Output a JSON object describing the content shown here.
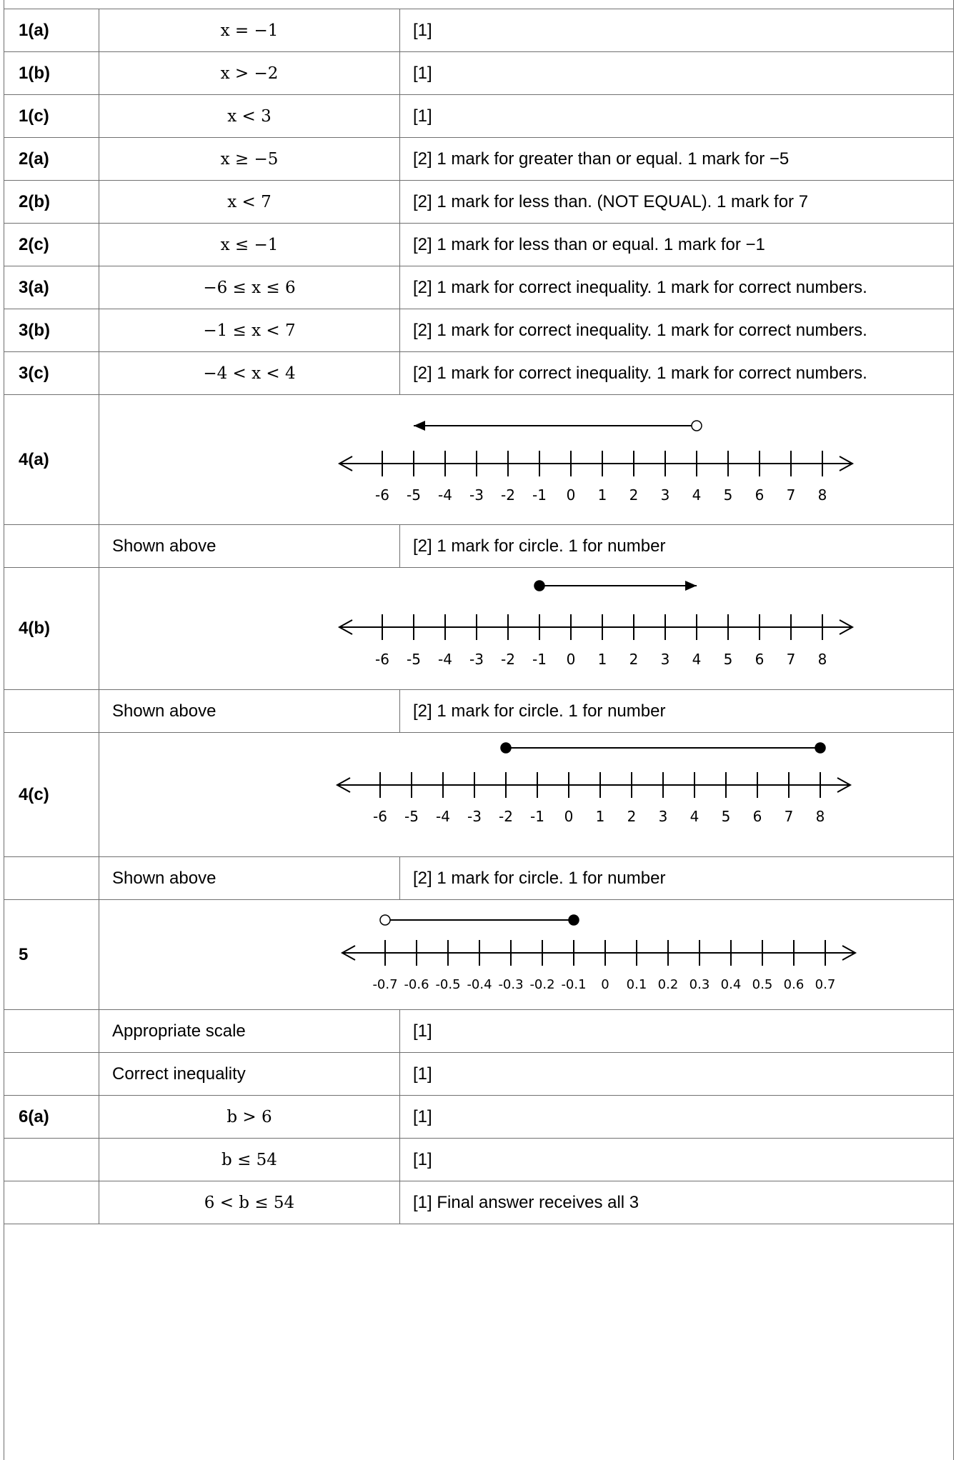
{
  "rows": [
    {
      "q": "1(a)",
      "answer": "x = −1",
      "mark": "[1]"
    },
    {
      "q": "1(b)",
      "answer": "x > −2",
      "mark": "[1]"
    },
    {
      "q": "1(c)",
      "answer": "x < 3",
      "mark": "[1]"
    },
    {
      "q": "2(a)",
      "answer": "x ≥ −5",
      "mark": "[2] 1 mark for greater than or equal. 1 mark for −5"
    },
    {
      "q": "2(b)",
      "answer": "x < 7",
      "mark": "[2] 1 mark for less than. (NOT EQUAL). 1 mark for 7"
    },
    {
      "q": "2(c)",
      "answer": "x ≤ −1",
      "mark": "[2] 1 mark for less than or equal. 1 mark for −1"
    },
    {
      "q": "3(a)",
      "answer": "−6 ≤ x ≤ 6",
      "mark": "[2] 1 mark for correct inequality. 1 mark for correct numbers."
    },
    {
      "q": "3(b)",
      "answer": "−1 ≤ x < 7",
      "mark": "[2] 1 mark for correct inequality. 1 mark for correct numbers."
    },
    {
      "q": "3(c)",
      "answer": "−4 < x < 4",
      "mark": "[2] 1 mark for correct inequality. 1 mark for correct numbers."
    }
  ],
  "number_lines": {
    "4a": {
      "q": "4(a)",
      "ticks": [
        "-6",
        "-5",
        "-4",
        "-3",
        "-2",
        "-1",
        "0",
        "1",
        "2",
        "3",
        "4",
        "5",
        "6",
        "7",
        "8"
      ],
      "ray": {
        "from": 4,
        "to": -5,
        "from_closed": false,
        "arrow_end": true
      },
      "follow_answer": "Shown above",
      "follow_mark": "[2] 1 mark for circle.  1 for number"
    },
    "4b": {
      "q": "4(b)",
      "ticks": [
        "-6",
        "-5",
        "-4",
        "-3",
        "-2",
        "-1",
        "0",
        "1",
        "2",
        "3",
        "4",
        "5",
        "6",
        "7",
        "8"
      ],
      "ray": {
        "from": -1,
        "to": 4,
        "from_closed": true,
        "arrow_end": true
      },
      "follow_answer": "Shown above",
      "follow_mark": "[2] 1 mark for circle.  1 for number"
    },
    "4c": {
      "q": "4(c)",
      "ticks": [
        "-6",
        "-5",
        "-4",
        "-3",
        "-2",
        "-1",
        "0",
        "1",
        "2",
        "3",
        "4",
        "5",
        "6",
        "7",
        "8"
      ],
      "ray": {
        "from": -2,
        "to": 8,
        "from_closed": true,
        "to_closed": true
      },
      "follow_answer": "Shown above",
      "follow_mark": "[2] 1 mark for circle.  1 for number"
    },
    "5": {
      "q": "5",
      "ticks": [
        "-0.7",
        "-0.6",
        "-0.5",
        "-0.4",
        "-0.3",
        "-0.2",
        "-0.1",
        "0",
        "0.1",
        "0.2",
        "0.3",
        "0.4",
        "0.5",
        "0.6",
        "0.7"
      ],
      "ray": {
        "from": -0.7,
        "to": -0.1,
        "from_closed": false,
        "to_closed": true
      },
      "follow": [
        {
          "answer": "Appropriate scale",
          "mark": "[1]"
        },
        {
          "answer": "Correct inequality",
          "mark": "[1]"
        }
      ]
    }
  },
  "rows6": [
    {
      "q": "6(a)",
      "answer": "b > 6",
      "mark": "[1]"
    },
    {
      "q": "",
      "answer": "b ≤ 54",
      "mark": "[1]"
    },
    {
      "q": "",
      "answer": "6 < b ≤ 54",
      "mark": "[1] Final answer receives all 3"
    }
  ]
}
